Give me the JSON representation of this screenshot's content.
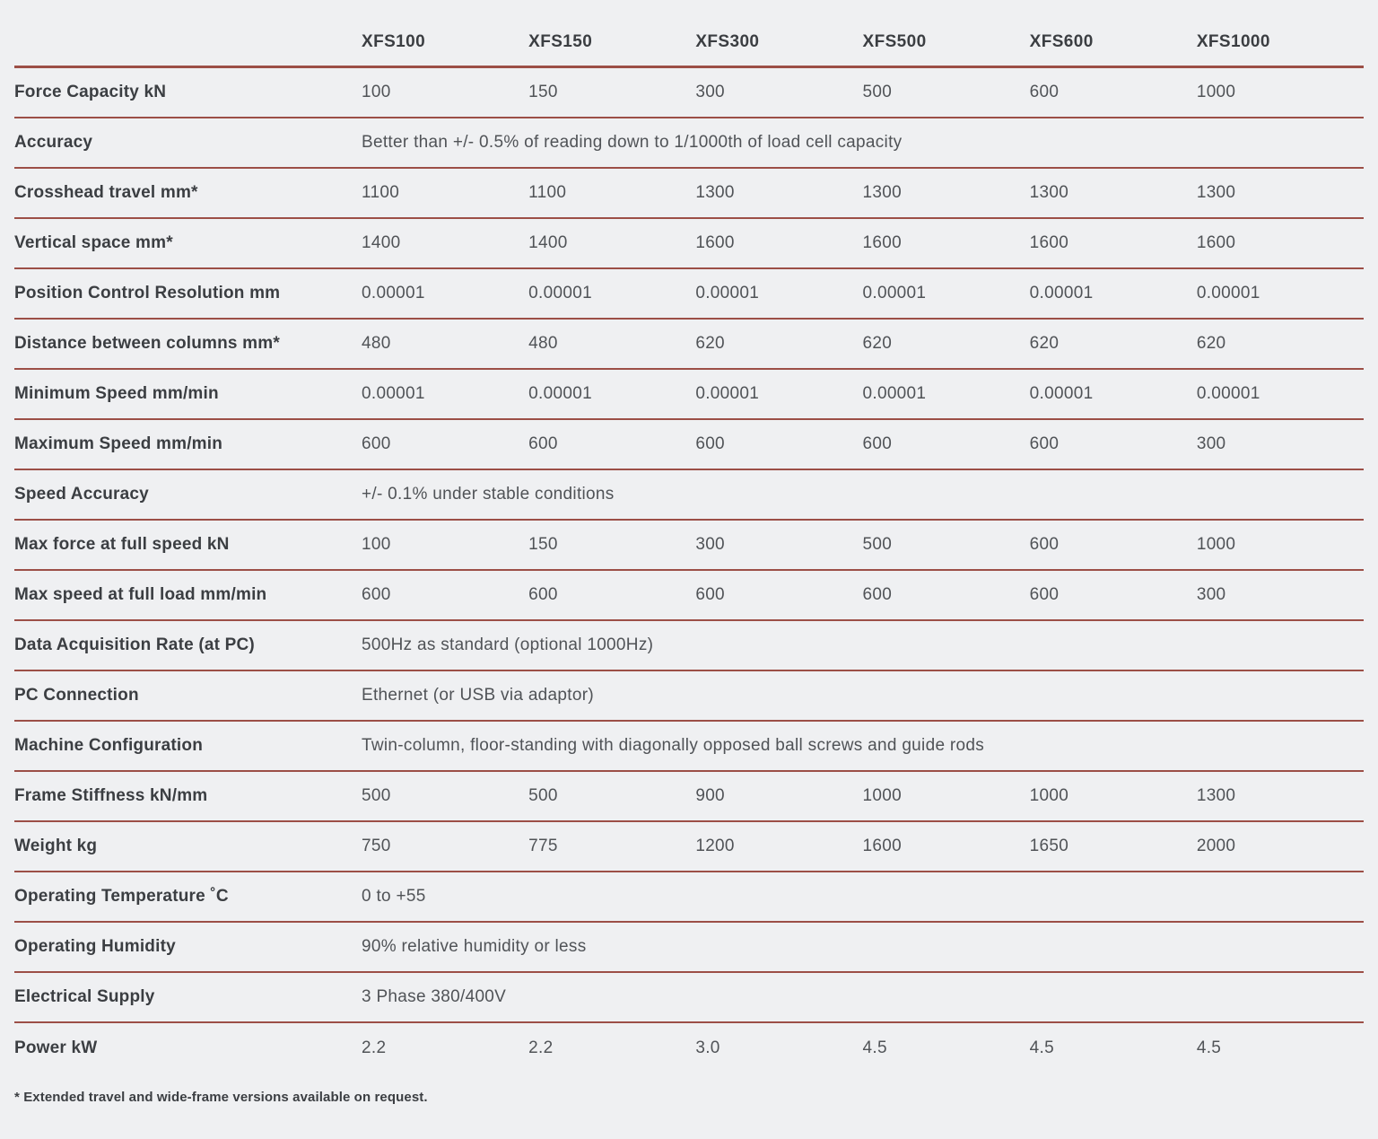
{
  "table": {
    "columns": [
      "XFS100",
      "XFS150",
      "XFS300",
      "XFS500",
      "XFS600",
      "XFS1000"
    ],
    "rows": [
      {
        "label": "Force Capacity kN",
        "values": [
          "100",
          "150",
          "300",
          "500",
          "600",
          "1000"
        ]
      },
      {
        "label": "Accuracy",
        "span": "Better than +/- 0.5% of reading down to 1/1000th of load cell capacity"
      },
      {
        "label": "Crosshead travel mm*",
        "values": [
          "1100",
          "1100",
          "1300",
          "1300",
          "1300",
          "1300"
        ]
      },
      {
        "label": "Vertical space mm*",
        "values": [
          "1400",
          "1400",
          "1600",
          "1600",
          "1600",
          "1600"
        ]
      },
      {
        "label": "Position Control Resolution mm",
        "values": [
          "0.00001",
          "0.00001",
          "0.00001",
          "0.00001",
          "0.00001",
          "0.00001"
        ]
      },
      {
        "label": "Distance between columns mm*",
        "values": [
          "480",
          "480",
          "620",
          "620",
          "620",
          "620"
        ]
      },
      {
        "label": "Minimum Speed mm/min",
        "values": [
          "0.00001",
          "0.00001",
          "0.00001",
          "0.00001",
          "0.00001",
          "0.00001"
        ]
      },
      {
        "label": "Maximum Speed mm/min",
        "values": [
          "600",
          "600",
          "600",
          "600",
          "600",
          "300"
        ]
      },
      {
        "label": "Speed Accuracy",
        "span": "+/- 0.1% under stable conditions"
      },
      {
        "label": "Max force at full speed kN",
        "values": [
          "100",
          "150",
          "300",
          "500",
          "600",
          "1000"
        ]
      },
      {
        "label": "Max speed at full load mm/min",
        "values": [
          "600",
          "600",
          "600",
          "600",
          "600",
          "300"
        ]
      },
      {
        "label": "Data Acquisition Rate (at PC)",
        "span": "500Hz as standard (optional 1000Hz)"
      },
      {
        "label": "PC Connection",
        "span": "Ethernet (or USB via adaptor)"
      },
      {
        "label": "Machine Configuration",
        "span": "Twin-column, floor-standing with diagonally opposed ball screws and guide rods"
      },
      {
        "label": "Frame Stiffness kN/mm",
        "values": [
          "500",
          "500",
          "900",
          "1000",
          "1000",
          "1300"
        ]
      },
      {
        "label": "Weight kg",
        "values": [
          "750",
          "775",
          "1200",
          "1600",
          "1650",
          "2000"
        ]
      },
      {
        "label": "Operating Temperature ˚C",
        "span": "0 to +55"
      },
      {
        "label": "Operating Humidity",
        "span": "90% relative humidity or less"
      },
      {
        "label": "Electrical Supply",
        "span": "3 Phase 380/400V"
      },
      {
        "label": "Power kW",
        "values": [
          "2.2",
          "2.2",
          "3.0",
          "4.5",
          "4.5",
          "4.5"
        ]
      }
    ],
    "footnote": "* Extended travel and wide-frame versions available on request."
  },
  "colors": {
    "background": "#eff0f2",
    "divider": "#9c4f47",
    "label_text": "#3b3e42",
    "value_text": "#505357"
  }
}
